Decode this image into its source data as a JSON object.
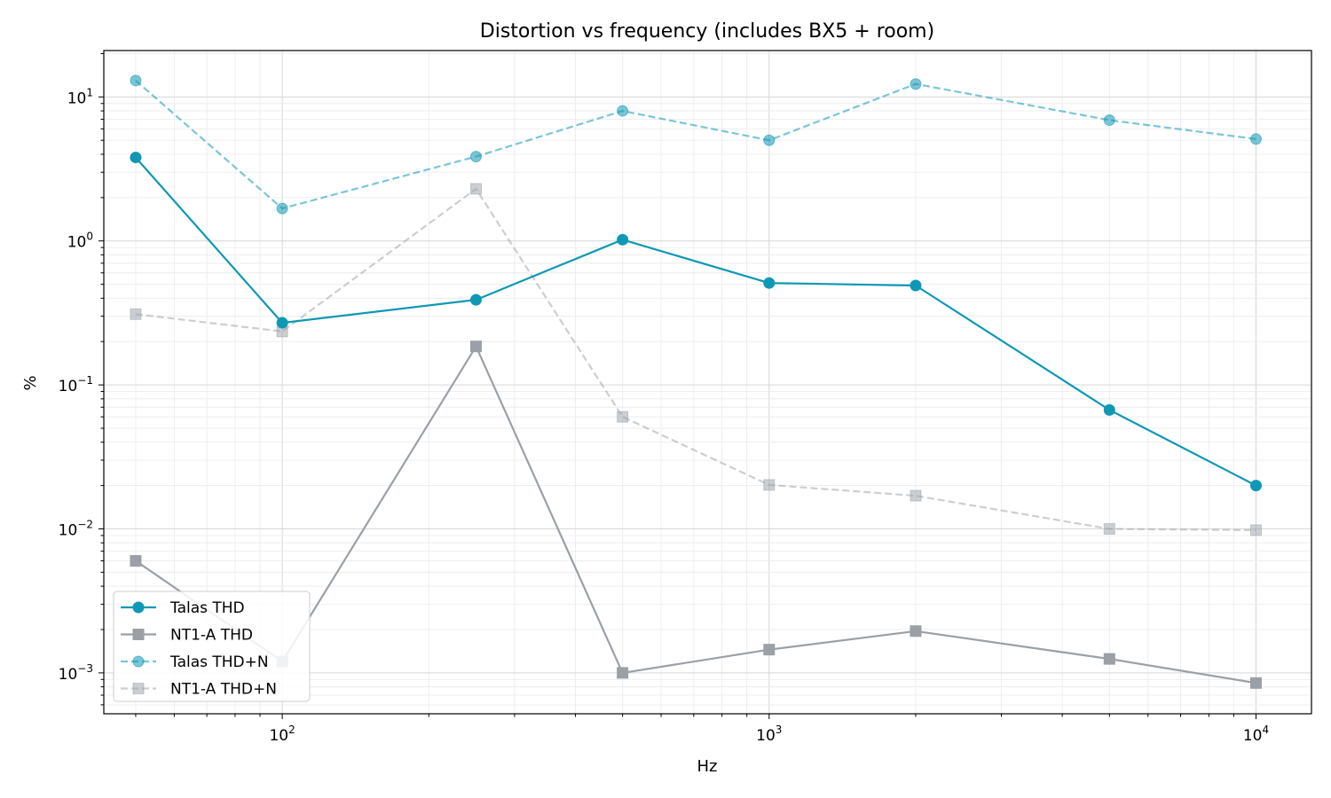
{
  "chart_data": {
    "type": "line",
    "title": "Distortion vs frequency (includes BX5 + room)",
    "xlabel": "Hz",
    "ylabel": "%",
    "xscale": "log",
    "yscale": "log",
    "xlim": [
      43,
      13000
    ],
    "ylim": [
      0.00052,
      21
    ],
    "x_ticks": [
      {
        "value": 100,
        "mantissa": "10",
        "exp": "2"
      },
      {
        "value": 1000,
        "mantissa": "10",
        "exp": "3"
      },
      {
        "value": 10000,
        "mantissa": "10",
        "exp": "4"
      }
    ],
    "y_ticks": [
      {
        "value": 0.001,
        "mantissa": "10",
        "exp": "−3"
      },
      {
        "value": 0.01,
        "mantissa": "10",
        "exp": "−2"
      },
      {
        "value": 0.1,
        "mantissa": "10",
        "exp": "−1"
      },
      {
        "value": 1,
        "mantissa": "10",
        "exp": "0"
      },
      {
        "value": 10,
        "mantissa": "10",
        "exp": "1"
      }
    ],
    "grid": "major and minor, both axes",
    "legend_position": "lower-left",
    "x": [
      50,
      100,
      250,
      500,
      1000,
      2000,
      5000,
      10000
    ],
    "series": [
      {
        "name": "Talas THD",
        "color": "#0e98b5",
        "marker": "circle",
        "dash": "solid",
        "alpha": 1.0,
        "values": [
          3.8,
          0.27,
          0.39,
          1.02,
          0.51,
          0.49,
          0.067,
          0.02
        ]
      },
      {
        "name": "NT1-A THD",
        "color": "#9aa0a6",
        "marker": "square",
        "dash": "solid",
        "alpha": 1.0,
        "values": [
          0.006,
          0.0012,
          0.185,
          0.001,
          0.00145,
          0.00195,
          0.00125,
          0.00085
        ]
      },
      {
        "name": "Talas THD+N",
        "color": "#0e98b5",
        "marker": "circle",
        "dash": "dashed",
        "alpha": 0.55,
        "values": [
          13.0,
          1.68,
          3.85,
          8.0,
          5.0,
          12.3,
          6.9,
          5.1
        ]
      },
      {
        "name": "NT1-A THD+N",
        "color": "#9aa0a6",
        "marker": "square",
        "dash": "dashed",
        "alpha": 0.5,
        "values": [
          0.31,
          0.235,
          2.3,
          0.06,
          0.0202,
          0.017,
          0.01,
          0.0098
        ]
      }
    ]
  }
}
